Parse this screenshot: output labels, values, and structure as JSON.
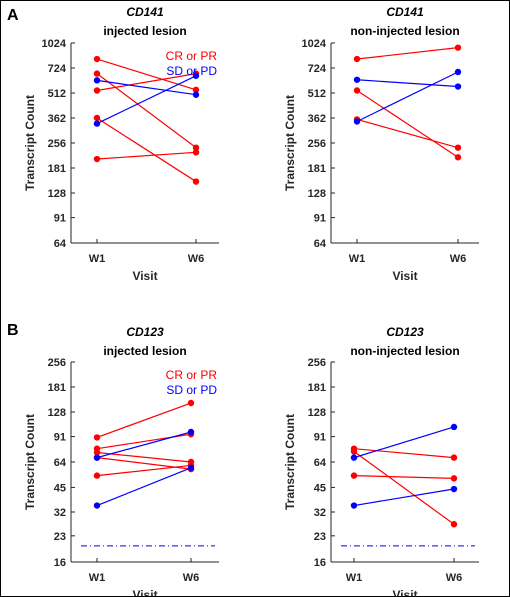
{
  "panels": [
    {
      "id": "A",
      "letter": "A"
    },
    {
      "id": "B",
      "letter": "B"
    }
  ],
  "colors": {
    "responder": "#ff0000",
    "non_responder": "#0000ff",
    "axis": "#262626"
  },
  "chart_data": [
    {
      "type": "line",
      "panel": "A",
      "gene": "CD141",
      "title": "injected lesion",
      "xlabel": "Visit",
      "ylabel": "Transcript Count",
      "categories": [
        "W1",
        "W6"
      ],
      "y_scale": "log",
      "ylim": [
        64,
        1024
      ],
      "yticks": [
        64,
        91,
        128,
        181,
        256,
        362,
        512,
        724,
        1024
      ],
      "legend": [
        "CR or PR",
        "SD or PD"
      ],
      "legend_position": "top-right",
      "series": [
        {
          "group": "CR or PR",
          "values": [
            820,
            535
          ]
        },
        {
          "group": "CR or PR",
          "values": [
            670,
            240
          ]
        },
        {
          "group": "CR or PR",
          "values": [
            530,
            670
          ]
        },
        {
          "group": "CR or PR",
          "values": [
            362,
            150
          ]
        },
        {
          "group": "CR or PR",
          "values": [
            205,
            225
          ]
        },
        {
          "group": "SD or PD",
          "values": [
            610,
            500
          ]
        },
        {
          "group": "SD or PD",
          "values": [
            335,
            650
          ]
        }
      ]
    },
    {
      "type": "line",
      "panel": "A",
      "gene": "CD141",
      "title": "non-injected lesion",
      "xlabel": "Visit",
      "ylabel": "Transcript Count",
      "categories": [
        "W1",
        "W6"
      ],
      "y_scale": "log",
      "ylim": [
        64,
        1024
      ],
      "yticks": [
        64,
        91,
        128,
        181,
        256,
        362,
        512,
        724,
        1024
      ],
      "series": [
        {
          "group": "CR or PR",
          "values": [
            820,
            960
          ]
        },
        {
          "group": "CR or PR",
          "values": [
            530,
            210
          ]
        },
        {
          "group": "CR or PR",
          "values": [
            355,
            240
          ]
        },
        {
          "group": "SD or PD",
          "values": [
            615,
            560
          ]
        },
        {
          "group": "SD or PD",
          "values": [
            345,
            685
          ]
        }
      ]
    },
    {
      "type": "line",
      "panel": "B",
      "gene": "CD123",
      "title": "injected lesion",
      "xlabel": "Visit",
      "ylabel": "Transcript Count",
      "categories": [
        "W1",
        "W6"
      ],
      "y_scale": "log",
      "ylim": [
        16,
        256
      ],
      "yticks": [
        16,
        23,
        32,
        45,
        64,
        91,
        128,
        181,
        256
      ],
      "legend": [
        "CR or PR",
        "SD or PD"
      ],
      "legend_position": "top-right",
      "reference_line": 20,
      "series": [
        {
          "group": "CR or PR",
          "values": [
            90,
            145
          ]
        },
        {
          "group": "CR or PR",
          "values": [
            77,
            94
          ]
        },
        {
          "group": "CR or PR",
          "values": [
            73,
            64
          ]
        },
        {
          "group": "CR or PR",
          "values": [
            68,
            58
          ]
        },
        {
          "group": "CR or PR",
          "values": [
            53,
            61
          ]
        },
        {
          "group": "SD or PD",
          "values": [
            68,
            97
          ]
        },
        {
          "group": "SD or PD",
          "values": [
            35,
            59
          ]
        }
      ]
    },
    {
      "type": "line",
      "panel": "B",
      "gene": "CD123",
      "title": "non-injected lesion",
      "xlabel": "Visit",
      "ylabel": "Transcript Count",
      "categories": [
        "W1",
        "W6"
      ],
      "y_scale": "log",
      "ylim": [
        16,
        256
      ],
      "yticks": [
        16,
        23,
        32,
        45,
        64,
        91,
        128,
        181,
        256
      ],
      "reference_line": 20,
      "series": [
        {
          "group": "CR or PR",
          "values": [
            77,
            68
          ]
        },
        {
          "group": "CR or PR",
          "values": [
            74,
            27
          ]
        },
        {
          "group": "CR or PR",
          "values": [
            53,
            51
          ]
        },
        {
          "group": "SD or PD",
          "values": [
            68,
            104
          ]
        },
        {
          "group": "SD or PD",
          "values": [
            35,
            44
          ]
        }
      ]
    }
  ]
}
